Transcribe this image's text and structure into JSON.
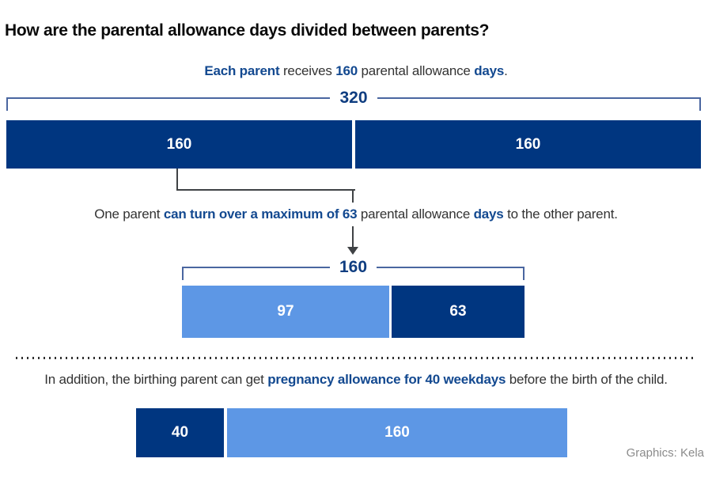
{
  "title": "How are the parental allowance days divided between parents?",
  "intro": {
    "seg0": "Each parent",
    "seg1": " receives ",
    "seg2": "160",
    "seg3": " parental allowance ",
    "seg4": "days",
    "seg5": "."
  },
  "transfer_text": {
    "seg0": "One parent ",
    "seg1": "can turn over a maximum of 63",
    "seg2": " parental allowance ",
    "seg3": "days",
    "seg4": " to the other parent."
  },
  "pregnancy_text": {
    "seg0": "In addition, the birthing parent can get ",
    "seg1": "pregnancy allowance for 40 weekdays",
    "seg2": " before the birth of the child."
  },
  "total_bracket": {
    "label": "320",
    "value": 320
  },
  "parents_bar": {
    "segments": [
      {
        "label": "160",
        "value": 160
      },
      {
        "label": "160",
        "value": 160
      }
    ]
  },
  "transfer_bracket": {
    "label": "160",
    "value": 160
  },
  "transfer_bar": {
    "segments": [
      {
        "label": "97",
        "value": 97
      },
      {
        "label": "63",
        "value": 63
      }
    ]
  },
  "pregnancy_bar": {
    "segments": [
      {
        "label": "40",
        "value": 40
      },
      {
        "label": "160",
        "value": 160
      }
    ]
  },
  "credit": "Graphics: Kela",
  "colors": {
    "navy": "#003680",
    "light_blue": "#5d97e5",
    "text_blue": "#134990",
    "bracket_blue": "#4a66a0",
    "connector_gray": "#3f4245"
  }
}
